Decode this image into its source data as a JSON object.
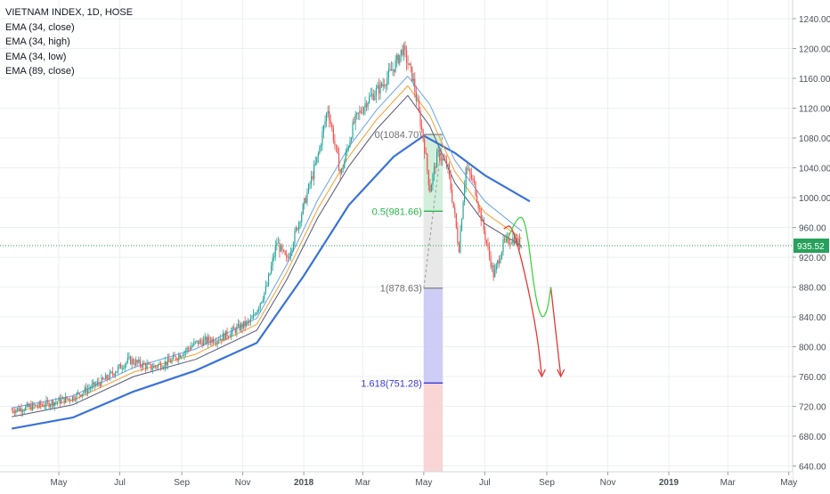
{
  "legend": {
    "symbol": "VIETNAM INDEX, 1D, HOSE",
    "studies": [
      "EMA (34, close)",
      "EMA (34, high)",
      "EMA (34, low)",
      "EMA (89, close)"
    ]
  },
  "price_badge": "935.52",
  "fib_labels": {
    "level0": "0(1084.70)",
    "level05": "0.5(981.66)",
    "level1": "1(878.63)",
    "level1618": "1.618(751.28)"
  },
  "colors": {
    "grid": "#eceff2",
    "up_candle": "#26a69a",
    "down_candle": "#ef5350",
    "ema89": "#3a72d8",
    "ema34_close": "#f0a030",
    "ema34_high": "#6aa3e8",
    "ema34_low": "#555577",
    "price_line": "#27a15b",
    "fib_green": "#c9ecd4",
    "fib_grey": "#e6e6e6",
    "fib_blue": "#c8c8f5",
    "fib_red": "#f8d0d0",
    "projection_red": "#e53935",
    "projection_green": "#43d143"
  },
  "chart_data": {
    "type": "candlestick",
    "title": "VIETNAM INDEX, 1D, HOSE",
    "y_ticks": [
      640,
      680,
      720,
      760,
      800,
      840,
      880,
      920,
      960,
      1000,
      1040,
      1080,
      1120,
      1160,
      1200,
      1240
    ],
    "x_ticks": [
      "May",
      "Jul",
      "Sep",
      "Nov",
      "2018",
      "Mar",
      "May",
      "Jul",
      "Sep",
      "Nov",
      "2019",
      "Mar",
      "May"
    ],
    "ylim": [
      628,
      1252
    ],
    "last_price": 935.52,
    "price_path": [
      [
        "2017-03-15",
        715
      ],
      [
        "2017-04-15",
        722
      ],
      [
        "2017-05-15",
        732
      ],
      [
        "2017-06-15",
        755
      ],
      [
        "2017-07-10",
        782
      ],
      [
        "2017-08-01",
        772
      ],
      [
        "2017-08-20",
        780
      ],
      [
        "2017-09-15",
        805
      ],
      [
        "2017-10-10",
        812
      ],
      [
        "2017-11-10",
        835
      ],
      [
        "2017-11-25",
        880
      ],
      [
        "2017-12-05",
        940
      ],
      [
        "2017-12-15",
        915
      ],
      [
        "2017-12-31",
        985
      ],
      [
        "2018-01-15",
        1055
      ],
      [
        "2018-01-25",
        1120
      ],
      [
        "2018-02-07",
        1030
      ],
      [
        "2018-02-20",
        1100
      ],
      [
        "2018-03-05",
        1130
      ],
      [
        "2018-03-20",
        1150
      ],
      [
        "2018-04-01",
        1175
      ],
      [
        "2018-04-10",
        1200
      ],
      [
        "2018-04-20",
        1160
      ],
      [
        "2018-05-01",
        1075
      ],
      [
        "2018-05-07",
        1010
      ],
      [
        "2018-05-15",
        1060
      ],
      [
        "2018-05-25",
        1040
      ],
      [
        "2018-06-01",
        975
      ],
      [
        "2018-06-05",
        930
      ],
      [
        "2018-06-12",
        1040
      ],
      [
        "2018-06-20",
        1020
      ],
      [
        "2018-07-01",
        950
      ],
      [
        "2018-07-10",
        895
      ],
      [
        "2018-07-20",
        940
      ],
      [
        "2018-07-30",
        945
      ],
      [
        "2018-08-07",
        935.52
      ]
    ],
    "ema_89_close": [
      [
        "2017-03-15",
        690
      ],
      [
        "2017-05-15",
        705
      ],
      [
        "2017-07-15",
        740
      ],
      [
        "2017-09-15",
        768
      ],
      [
        "2017-11-15",
        805
      ],
      [
        "2018-01-01",
        895
      ],
      [
        "2018-02-15",
        990
      ],
      [
        "2018-04-01",
        1055
      ],
      [
        "2018-05-01",
        1083
      ],
      [
        "2018-06-01",
        1060
      ],
      [
        "2018-07-01",
        1030
      ],
      [
        "2018-08-15",
        995
      ]
    ],
    "ema_34_close": [
      [
        "2017-03-15",
        712
      ],
      [
        "2017-05-15",
        728
      ],
      [
        "2017-07-15",
        766
      ],
      [
        "2017-09-15",
        790
      ],
      [
        "2017-11-15",
        830
      ],
      [
        "2017-12-15",
        900
      ],
      [
        "2018-01-15",
        985
      ],
      [
        "2018-02-15",
        1055
      ],
      [
        "2018-03-15",
        1105
      ],
      [
        "2018-04-15",
        1150
      ],
      [
        "2018-05-07",
        1110
      ],
      [
        "2018-06-01",
        1035
      ],
      [
        "2018-07-01",
        980
      ],
      [
        "2018-08-07",
        945
      ]
    ],
    "ema_34_high": [
      [
        "2017-03-15",
        718
      ],
      [
        "2017-05-15",
        734
      ],
      [
        "2017-07-15",
        772
      ],
      [
        "2017-09-15",
        797
      ],
      [
        "2017-11-15",
        838
      ],
      [
        "2017-12-15",
        910
      ],
      [
        "2018-01-15",
        997
      ],
      [
        "2018-02-15",
        1068
      ],
      [
        "2018-03-15",
        1118
      ],
      [
        "2018-04-15",
        1163
      ],
      [
        "2018-05-07",
        1125
      ],
      [
        "2018-06-01",
        1050
      ],
      [
        "2018-07-01",
        995
      ],
      [
        "2018-08-07",
        955
      ]
    ],
    "ema_34_low": [
      [
        "2017-03-15",
        706
      ],
      [
        "2017-05-15",
        722
      ],
      [
        "2017-07-15",
        760
      ],
      [
        "2017-09-15",
        783
      ],
      [
        "2017-11-15",
        822
      ],
      [
        "2017-12-15",
        890
      ],
      [
        "2018-01-15",
        973
      ],
      [
        "2018-02-15",
        1042
      ],
      [
        "2018-03-15",
        1092
      ],
      [
        "2018-04-15",
        1137
      ],
      [
        "2018-05-07",
        1096
      ],
      [
        "2018-06-01",
        1020
      ],
      [
        "2018-07-01",
        965
      ],
      [
        "2018-08-07",
        935
      ]
    ],
    "fibonacci": {
      "from_date": "2018-05-01",
      "to_date": "2018-05-20",
      "levels": [
        {
          "ratio": 0,
          "value": 1084.7
        },
        {
          "ratio": 0.5,
          "value": 981.66
        },
        {
          "ratio": 1,
          "value": 878.63
        },
        {
          "ratio": 1.618,
          "value": 751.28
        }
      ],
      "extends_to": 628
    },
    "projection_red": [
      [
        "2018-07-20",
        958
      ],
      [
        "2018-07-28",
        965
      ],
      [
        "2018-08-10",
        900
      ],
      [
        "2018-08-22",
        820
      ],
      [
        "2018-08-27",
        760
      ]
    ],
    "projection_red_2": [
      [
        "2018-09-05",
        880
      ],
      [
        "2018-09-15",
        760
      ]
    ],
    "projection_green": [
      [
        "2018-07-22",
        940
      ],
      [
        "2018-08-05",
        980
      ],
      [
        "2018-08-12",
        960
      ],
      [
        "2018-08-20",
        870
      ],
      [
        "2018-08-27",
        835
      ],
      [
        "2018-09-02",
        850
      ],
      [
        "2018-09-05",
        880
      ]
    ]
  }
}
